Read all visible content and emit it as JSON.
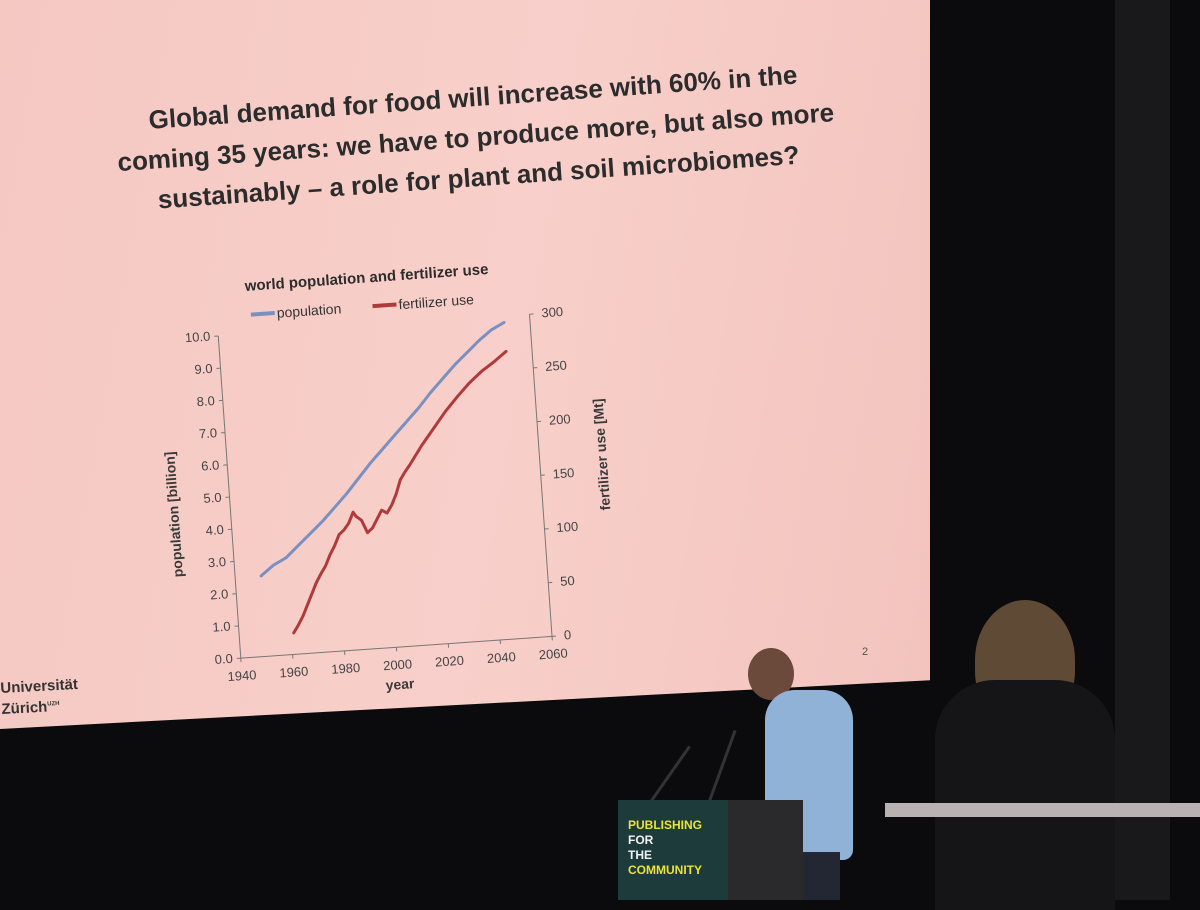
{
  "slide": {
    "title_lines": [
      "Global demand for food will increase with 60% in the",
      "coming 35 years: we have to produce more, but also more",
      "sustainably – a role for plant and soil microbiomes?"
    ],
    "page_number": "2",
    "logo_lines": [
      "Universität",
      "Zürich"
    ],
    "logo_sup": "UZH"
  },
  "podium": {
    "line1_a": "PUBLISHING",
    "line1_b": "FOR",
    "line2_a": "THE",
    "line2_b": "COMMUNITY"
  },
  "chart_data": {
    "type": "line",
    "title": "world population and fertilizer use",
    "xlabel": "year",
    "ylabel": "population [billion]",
    "y2label": "fertilizer use [Mt]",
    "xlim": [
      1940,
      2060
    ],
    "ylim": [
      0,
      10
    ],
    "y2lim": [
      0,
      300
    ],
    "xticks": [
      1940,
      1960,
      1980,
      2000,
      2020,
      2040,
      2060
    ],
    "yticks": [
      "0.0",
      "1.0",
      "2.0",
      "3.0",
      "4.0",
      "5.0",
      "6.0",
      "7.0",
      "8.0",
      "9.0",
      "10.0"
    ],
    "y2ticks": [
      0,
      50,
      100,
      150,
      200,
      250,
      300
    ],
    "legend": "top",
    "grid": false,
    "series": [
      {
        "name": "population",
        "axis": "left",
        "color": "#7a90c0",
        "x": [
          1950,
          1955,
          1960,
          1965,
          1970,
          1975,
          1980,
          1985,
          1990,
          1995,
          2000,
          2005,
          2010,
          2015,
          2020,
          2025,
          2030,
          2035,
          2040,
          2045,
          2050
        ],
        "y": [
          2.5,
          2.8,
          3.0,
          3.35,
          3.7,
          4.05,
          4.45,
          4.85,
          5.3,
          5.75,
          6.15,
          6.55,
          6.95,
          7.35,
          7.8,
          8.2,
          8.6,
          8.95,
          9.3,
          9.6,
          9.8
        ]
      },
      {
        "name": "fertilizer use",
        "axis": "right",
        "color": "#b03a3a",
        "x": [
          1961,
          1963,
          1965,
          1967,
          1969,
          1971,
          1973,
          1975,
          1977,
          1979,
          1981,
          1983,
          1985,
          1987,
          1988,
          1990,
          1992,
          1994,
          1996,
          1998,
          2000,
          2002,
          2004,
          2006,
          2008,
          2010,
          2015,
          2020,
          2025,
          2030,
          2035,
          2040,
          2045,
          2050
        ],
        "y": [
          20,
          27,
          35,
          45,
          55,
          65,
          73,
          80,
          90,
          98,
          108,
          112,
          118,
          128,
          124,
          120,
          108,
          112,
          120,
          128,
          125,
          132,
          142,
          155,
          162,
          168,
          185,
          200,
          215,
          228,
          240,
          250,
          258,
          267
        ]
      }
    ]
  }
}
